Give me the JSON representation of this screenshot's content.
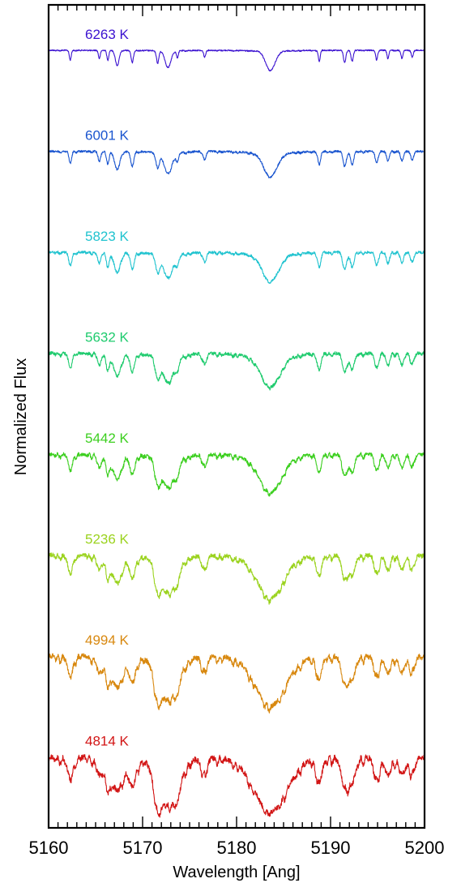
{
  "chart_data": {
    "type": "line",
    "title": "",
    "xlabel": "Wavelength [Ang]",
    "ylabel": "Normalized Flux",
    "xlim": [
      5160,
      5200
    ],
    "xticks": [
      5160,
      5170,
      5180,
      5190,
      5200
    ],
    "x_minor_step": 1,
    "y_tick_labels": false,
    "grid": false,
    "legend": "inline labels above each spectrum (stacked, offset vertically)",
    "absorption_lines": [
      {
        "x": 5162.3,
        "depth": 0.35,
        "width": 0.1
      },
      {
        "x": 5165.4,
        "depth": 0.3,
        "width": 0.1
      },
      {
        "x": 5166.3,
        "depth": 0.35,
        "width": 0.1
      },
      {
        "x": 5167.3,
        "depth": 0.55,
        "width": 0.2
      },
      {
        "x": 5168.9,
        "depth": 0.45,
        "width": 0.12
      },
      {
        "x": 5171.6,
        "depth": 0.45,
        "width": 0.12
      },
      {
        "x": 5172.7,
        "depth": 0.6,
        "width": 0.3
      },
      {
        "x": 5173.7,
        "depth": 0.25,
        "width": 0.1
      },
      {
        "x": 5176.6,
        "depth": 0.25,
        "width": 0.1
      },
      {
        "x": 5183.6,
        "depth": 0.7,
        "width": 0.5
      },
      {
        "x": 5188.8,
        "depth": 0.4,
        "width": 0.1
      },
      {
        "x": 5191.5,
        "depth": 0.45,
        "width": 0.12
      },
      {
        "x": 5192.3,
        "depth": 0.4,
        "width": 0.12
      },
      {
        "x": 5194.9,
        "depth": 0.35,
        "width": 0.1
      },
      {
        "x": 5196.1,
        "depth": 0.3,
        "width": 0.1
      },
      {
        "x": 5197.6,
        "depth": 0.3,
        "width": 0.1
      },
      {
        "x": 5198.7,
        "depth": 0.25,
        "width": 0.1
      }
    ],
    "series": [
      {
        "name": "6263 K",
        "color": "#3b12d0",
        "temperature": 6263
      },
      {
        "name": "6001 K",
        "color": "#1a55cf",
        "temperature": 6001
      },
      {
        "name": "5823 K",
        "color": "#20c3cf",
        "temperature": 5823
      },
      {
        "name": "5632 K",
        "color": "#1fcb6e",
        "temperature": 5632
      },
      {
        "name": "5442 K",
        "color": "#3ccf1f",
        "temperature": 5442
      },
      {
        "name": "5236 K",
        "color": "#9bd31f",
        "temperature": 5236
      },
      {
        "name": "4994 K",
        "color": "#d8880f",
        "temperature": 4994
      },
      {
        "name": "4814 K",
        "color": "#d21515",
        "temperature": 4814
      }
    ]
  }
}
